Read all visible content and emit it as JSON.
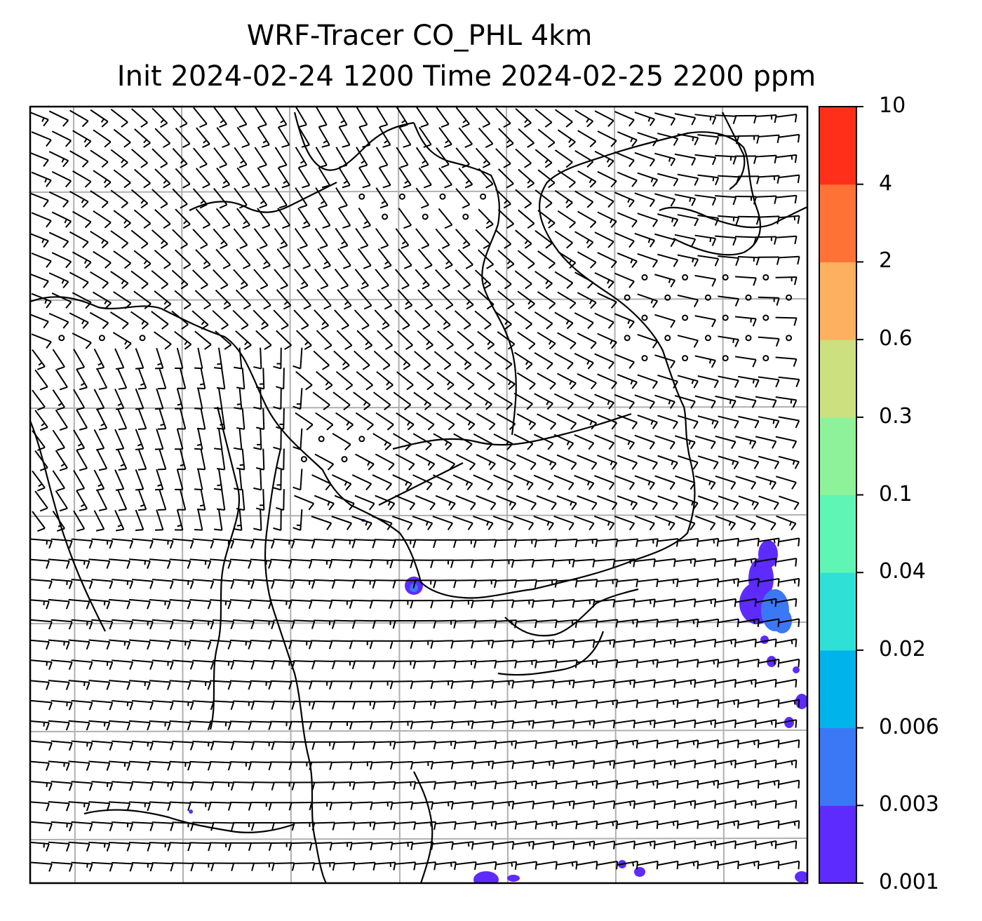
{
  "figure": {
    "title_line1": "WRF-Tracer CO_PHL 4km",
    "title_line2": "Init 2024-02-24 1200 Time 2024-02-25 2200 ppm"
  },
  "map": {
    "gridline_color": "#b0b0b0",
    "coastline_color": "#000000",
    "barb_color": "#000000",
    "wind_field_style": "wind-barbs",
    "tracer_patches_visible": true
  },
  "colorbar": {
    "levels": [
      "0.001",
      "0.003",
      "0.006",
      "0.02",
      "0.04",
      "0.1",
      "0.3",
      "0.6",
      "2",
      "4",
      "10"
    ],
    "colors": [
      "#5e2bff",
      "#3b78f5",
      "#00b4eb",
      "#2ee0d5",
      "#5ef5b5",
      "#8ef29a",
      "#cce07f",
      "#fdb060",
      "#ff7236",
      "#ff2f1a"
    ]
  }
}
